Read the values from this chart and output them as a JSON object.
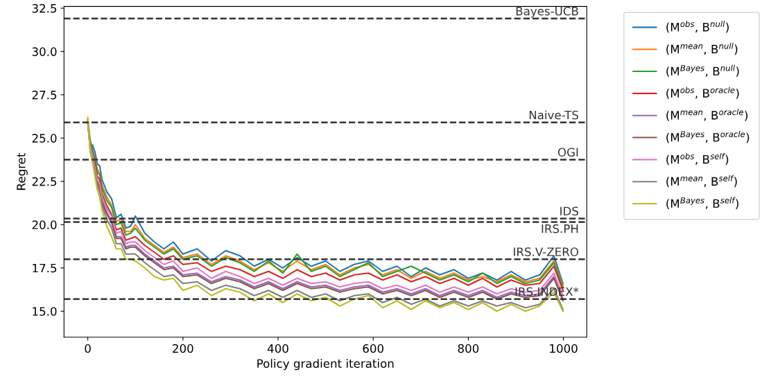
{
  "chart_data": {
    "type": "line",
    "xlabel": "Policy gradient iteration",
    "ylabel": "Regret",
    "xlim": [
      -50,
      1049
    ],
    "ylim": [
      13.5,
      32.6
    ],
    "xticks": [
      0,
      200,
      400,
      600,
      800,
      1000
    ],
    "yticks": [
      {
        "value": 15,
        "label": "15.0"
      },
      {
        "value": 17.5,
        "label": "17.5"
      },
      {
        "value": 20,
        "label": "20.0"
      },
      {
        "value": 22.5,
        "label": "22.5"
      },
      {
        "value": 25,
        "label": "25.0"
      },
      {
        "value": 27.5,
        "label": "27.5"
      },
      {
        "value": 30,
        "label": "30.0"
      },
      {
        "value": 32.5,
        "label": "32.5"
      }
    ],
    "grid": false,
    "legend": "top right",
    "line_style": "solid",
    "marker": "none",
    "x": [
      0,
      5,
      10,
      15,
      20,
      25,
      30,
      40,
      50,
      60,
      70,
      80,
      90,
      100,
      120,
      140,
      160,
      180,
      200,
      230,
      260,
      290,
      320,
      350,
      380,
      410,
      440,
      470,
      500,
      530,
      560,
      590,
      620,
      650,
      680,
      710,
      740,
      770,
      800,
      830,
      860,
      890,
      920,
      950,
      980,
      999
    ],
    "series": [
      {
        "name": "(M$^{obs}$, B$^{null}$)",
        "color": "#1f77b4",
        "values": [
          null,
          null,
          24.6,
          24.2,
          23.5,
          23.4,
          22.6,
          21.9,
          21.5,
          20.4,
          20.6,
          19.8,
          19.9,
          20.5,
          19.5,
          19.0,
          18.6,
          19.0,
          18.3,
          18.6,
          17.9,
          18.5,
          18.2,
          17.6,
          18.0,
          17.5,
          18.1,
          17.6,
          17.9,
          17.3,
          17.7,
          17.9,
          17.3,
          17.6,
          17.0,
          17.5,
          17.1,
          17.4,
          16.9,
          17.2,
          16.8,
          17.3,
          16.8,
          17.1,
          18.2,
          16.6
        ]
      },
      {
        "name": "(M$^{mean}$, B$^{null}$)",
        "color": "#ff7f0e",
        "values": [
          null,
          null,
          null,
          23.9,
          23.2,
          23.0,
          22.3,
          21.6,
          21.1,
          20.2,
          20.3,
          19.6,
          19.6,
          20.0,
          19.2,
          18.8,
          18.4,
          18.7,
          18.1,
          18.3,
          17.7,
          18.2,
          17.9,
          17.4,
          17.8,
          17.3,
          17.9,
          17.4,
          17.7,
          17.1,
          17.5,
          17.7,
          17.1,
          17.4,
          16.9,
          17.3,
          16.9,
          17.2,
          16.8,
          17.0,
          16.7,
          17.1,
          16.7,
          16.9,
          17.9,
          16.5
        ]
      },
      {
        "name": "(M$^{Bayes}$, B$^{null}$)",
        "color": "#2ca02c",
        "values": [
          26.1,
          24.9,
          24.3,
          23.8,
          23.0,
          22.9,
          22.1,
          21.4,
          21.0,
          20.0,
          20.1,
          19.4,
          19.5,
          19.8,
          19.1,
          18.7,
          18.3,
          18.6,
          18.0,
          18.2,
          17.6,
          18.1,
          17.8,
          17.3,
          17.9,
          17.2,
          18.3,
          17.3,
          17.6,
          17.0,
          17.4,
          17.8,
          17.0,
          17.3,
          17.6,
          17.2,
          16.8,
          17.1,
          16.7,
          17.2,
          16.6,
          17.0,
          16.6,
          16.8,
          17.8,
          16.4
        ]
      },
      {
        "name": "(M$^{obs}$, B$^{oracle}$)",
        "color": "#d62728",
        "values": [
          26.0,
          24.7,
          24.1,
          23.5,
          22.8,
          22.6,
          21.8,
          21.1,
          20.6,
          19.7,
          19.8,
          19.1,
          19.2,
          19.3,
          18.8,
          18.4,
          18.0,
          18.2,
          17.7,
          17.8,
          17.3,
          17.6,
          17.4,
          17.0,
          17.3,
          16.9,
          17.4,
          17.0,
          17.2,
          16.8,
          17.1,
          17.2,
          16.8,
          17.1,
          16.7,
          17.0,
          16.6,
          16.9,
          16.5,
          16.9,
          16.4,
          16.8,
          16.5,
          16.6,
          17.6,
          16.2
        ]
      },
      {
        "name": "(M$^{mean}$, B$^{oracle}$)",
        "color": "#9467bd",
        "values": [
          25.9,
          24.5,
          23.9,
          23.2,
          22.5,
          22.2,
          21.4,
          20.7,
          20.2,
          19.3,
          19.3,
          18.7,
          18.8,
          18.8,
          18.3,
          17.9,
          17.5,
          17.6,
          17.1,
          17.2,
          16.7,
          17.0,
          16.8,
          16.4,
          16.7,
          16.3,
          16.7,
          16.4,
          16.5,
          16.2,
          16.4,
          16.5,
          16.1,
          16.3,
          16.0,
          16.3,
          15.9,
          16.2,
          15.9,
          16.2,
          15.8,
          16.1,
          15.9,
          16.0,
          17.0,
          15.7
        ]
      },
      {
        "name": "(M$^{Bayes}$, B$^{oracle}$)",
        "color": "#8c564b",
        "values": [
          25.9,
          24.4,
          23.8,
          23.1,
          22.4,
          22.1,
          21.3,
          20.6,
          20.1,
          19.2,
          19.2,
          18.6,
          18.7,
          18.7,
          18.2,
          17.8,
          17.4,
          17.5,
          17.0,
          17.1,
          16.6,
          16.9,
          16.7,
          16.3,
          16.6,
          16.2,
          16.6,
          16.3,
          16.4,
          16.1,
          16.3,
          16.4,
          16.0,
          16.2,
          15.9,
          16.2,
          15.8,
          16.1,
          15.8,
          16.1,
          15.7,
          16.0,
          15.8,
          15.9,
          16.9,
          15.6
        ]
      },
      {
        "name": "(M$^{obs}$, B$^{self}$)",
        "color": "#e377c2",
        "values": [
          26.0,
          24.6,
          24.0,
          23.3,
          22.6,
          22.4,
          21.6,
          20.9,
          20.5,
          19.5,
          19.6,
          18.9,
          19.0,
          19.0,
          18.5,
          18.1,
          17.7,
          17.9,
          17.3,
          17.5,
          16.9,
          17.3,
          17.0,
          16.6,
          16.9,
          16.5,
          16.9,
          16.6,
          16.7,
          16.4,
          16.6,
          16.7,
          16.3,
          16.5,
          16.2,
          16.5,
          16.1,
          16.4,
          16.1,
          16.4,
          16.0,
          16.3,
          16.1,
          16.2,
          17.2,
          15.9
        ]
      },
      {
        "name": "(M$^{mean}$, B$^{self}$)",
        "color": "#7f7f7f",
        "values": [
          25.9,
          24.3,
          23.7,
          23.0,
          22.2,
          21.9,
          21.1,
          20.3,
          19.8,
          18.9,
          18.9,
          18.3,
          18.3,
          18.3,
          17.8,
          17.4,
          17.0,
          17.1,
          16.6,
          16.7,
          16.2,
          16.5,
          16.3,
          15.9,
          16.2,
          15.8,
          16.2,
          15.8,
          16.0,
          15.6,
          15.9,
          16.0,
          15.5,
          15.8,
          15.4,
          15.7,
          15.3,
          15.6,
          15.3,
          15.6,
          15.3,
          15.5,
          15.2,
          15.4,
          16.3,
          15.1
        ]
      },
      {
        "name": "(M$^{Bayes}$, B$^{self}$)",
        "color": "#bcbd22",
        "values": [
          26.2,
          24.2,
          23.6,
          22.8,
          22.0,
          21.6,
          20.8,
          19.9,
          19.3,
          18.6,
          18.6,
          18.0,
          18.0,
          17.9,
          17.5,
          17.0,
          16.8,
          16.9,
          16.2,
          16.5,
          15.9,
          16.3,
          16.1,
          15.6,
          16.0,
          15.5,
          16.0,
          15.6,
          15.8,
          15.3,
          15.7,
          15.9,
          15.2,
          15.6,
          15.1,
          15.6,
          15.2,
          15.5,
          15.1,
          15.5,
          15.0,
          15.4,
          15.0,
          15.3,
          16.1,
          15.0
        ]
      }
    ],
    "ref_lines": [
      {
        "axis": "y",
        "value": 31.9,
        "label": "Bayes-UCB",
        "color": "#333333",
        "line_style": "dashed"
      },
      {
        "axis": "y",
        "value": 25.9,
        "label": "Naive-TS",
        "color": "#333333",
        "line_style": "dashed"
      },
      {
        "axis": "y",
        "value": 23.75,
        "label": "OGI",
        "color": "#333333",
        "line_style": "dashed"
      },
      {
        "axis": "y",
        "value": 20.35,
        "label": "IDS",
        "color": "#333333",
        "line_style": "dashed"
      },
      {
        "axis": "y",
        "value": 20.15,
        "label": "IRS.PH",
        "color": "#333333",
        "line_style": "dashed"
      },
      {
        "axis": "y",
        "value": 18.0,
        "label": "IRS.V-ZERO",
        "color": "#333333",
        "line_style": "dashed"
      },
      {
        "axis": "y",
        "value": 15.7,
        "label": "IRS.INDEX*",
        "color": "#333333",
        "line_style": "dashed"
      }
    ]
  }
}
